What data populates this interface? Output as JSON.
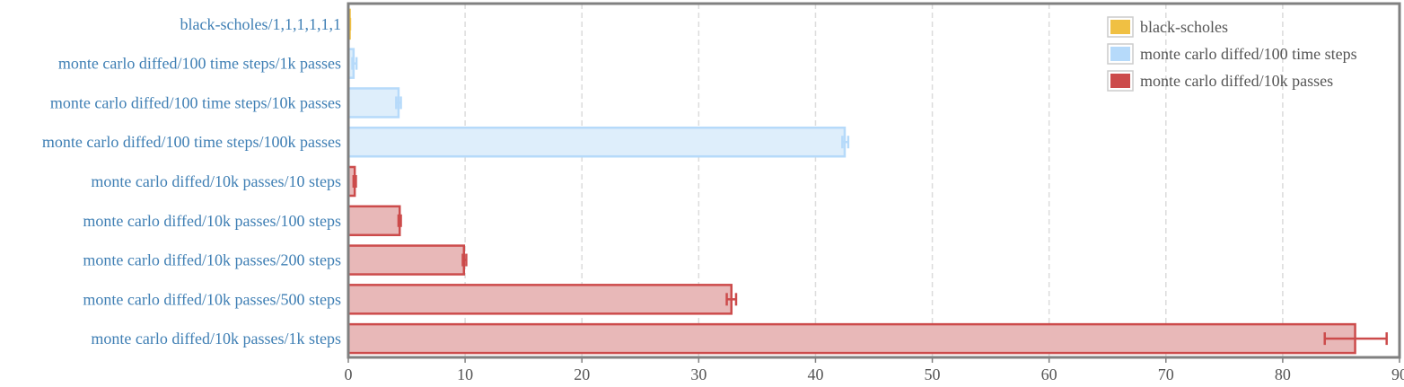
{
  "chart_data": {
    "type": "bar",
    "orientation": "horizontal",
    "xlim": [
      0,
      90
    ],
    "x_ticks": [
      "0",
      "10",
      "20",
      "30",
      "40",
      "50",
      "60",
      "70",
      "80",
      "90"
    ],
    "x_tick_values": [
      0,
      10,
      20,
      30,
      40,
      50,
      60,
      70,
      80,
      90
    ],
    "grid": true,
    "legend_position": "top-right",
    "series": [
      {
        "name": "black-scholes",
        "color": "#f0c043",
        "fill": "#f0c043",
        "fill_opacity": 1.0
      },
      {
        "name": "monte carlo diffed/100 time steps",
        "color": "#b6dafa",
        "fill": "#deeefb",
        "fill_opacity": 1.0
      },
      {
        "name": "monte carlo diffed/10k passes",
        "color": "#cc4b4b",
        "fill": "#e8b8b8",
        "fill_opacity": 1.0
      }
    ],
    "bars": [
      {
        "label": "black-scholes/1,1,1,1,1,1",
        "series": 0,
        "value": 0.05,
        "err_low": 0.0,
        "err_high": 0.15
      },
      {
        "label": "monte carlo diffed/100 time steps/1k passes",
        "series": 1,
        "value": 0.45,
        "err_low": 0.35,
        "err_high": 0.7
      },
      {
        "label": "monte carlo diffed/100 time steps/10k passes",
        "series": 1,
        "value": 4.3,
        "err_low": 4.1,
        "err_high": 4.5
      },
      {
        "label": "monte carlo diffed/100 time steps/100k passes",
        "series": 1,
        "value": 42.5,
        "err_low": 42.3,
        "err_high": 42.8
      },
      {
        "label": "monte carlo diffed/10k passes/10 steps",
        "series": 2,
        "value": 0.55,
        "err_low": 0.45,
        "err_high": 0.65
      },
      {
        "label": "monte carlo diffed/10k passes/100 steps",
        "series": 2,
        "value": 4.4,
        "err_low": 4.3,
        "err_high": 4.5
      },
      {
        "label": "monte carlo diffed/10k passes/200 steps",
        "series": 2,
        "value": 9.9,
        "err_low": 9.8,
        "err_high": 10.1
      },
      {
        "label": "monte carlo diffed/10k passes/500 steps",
        "series": 2,
        "value": 32.8,
        "err_low": 32.4,
        "err_high": 33.2
      },
      {
        "label": "monte carlo diffed/10k passes/1k steps",
        "series": 2,
        "value": 86.2,
        "err_low": 83.6,
        "err_high": 88.9
      }
    ]
  }
}
